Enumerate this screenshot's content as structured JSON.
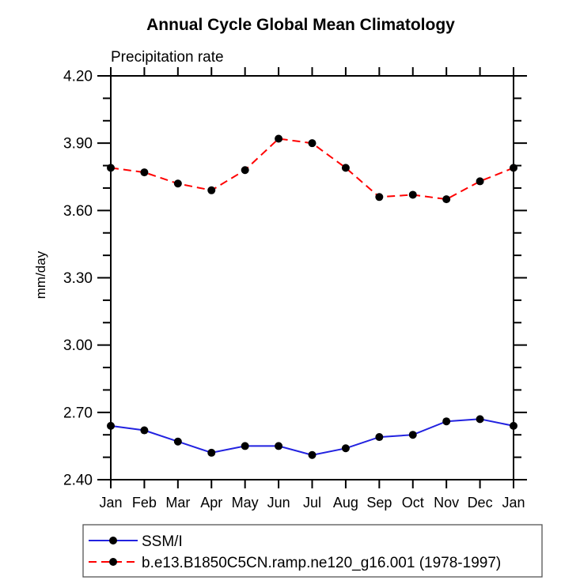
{
  "chart_data": {
    "type": "line",
    "title": "Annual Cycle Global Mean Climatology",
    "subtitle": "Precipitation rate",
    "ylabel": "mm/day",
    "categories": [
      "Jan",
      "Feb",
      "Mar",
      "Apr",
      "May",
      "Jun",
      "Jul",
      "Aug",
      "Sep",
      "Oct",
      "Nov",
      "Dec",
      "Jan"
    ],
    "ylim": [
      2.4,
      4.2
    ],
    "ytick_major_interval": 0.3,
    "ytick_minor_interval": 0.1,
    "ytick_labels": [
      "4.20",
      "3.90",
      "3.60",
      "3.30",
      "3.00",
      "2.70",
      "2.40"
    ],
    "grid": false,
    "legend_position": "bottom-left",
    "colors": {
      "ssmi_line": "#2222e0",
      "model_line": "#ff0000",
      "marker": "#000000",
      "axis": "#000000",
      "legend_border": "#555555"
    },
    "series": [
      {
        "name": "SSM/I",
        "color": "#2222e0",
        "line_style": "solid",
        "marker": "filled-circle",
        "marker_color": "#000000",
        "values": [
          2.64,
          2.62,
          2.57,
          2.52,
          2.55,
          2.55,
          2.51,
          2.54,
          2.59,
          2.6,
          2.66,
          2.67,
          2.64
        ]
      },
      {
        "name": "b.e13.B1850C5CN.ramp.ne120_g16.001 (1978-1997)",
        "color": "#ff0000",
        "line_style": "dashed",
        "marker": "filled-circle",
        "marker_color": "#000000",
        "values": [
          3.79,
          3.77,
          3.72,
          3.69,
          3.78,
          3.92,
          3.9,
          3.79,
          3.66,
          3.67,
          3.65,
          3.73,
          3.79
        ]
      }
    ]
  }
}
